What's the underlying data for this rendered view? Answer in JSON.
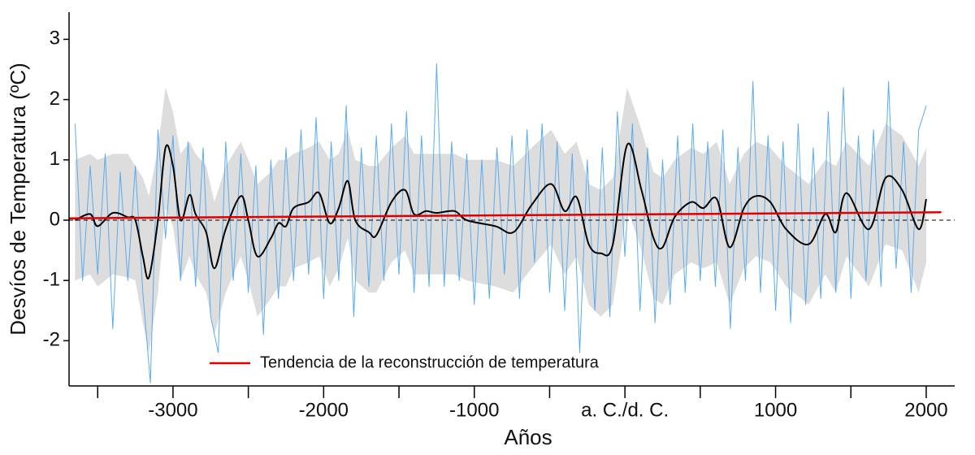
{
  "chart_data": {
    "type": "line",
    "x_label": "Años",
    "y_label": "Desvíos de Temperatura (ºC)",
    "xlim": [
      -3690,
      2189
    ],
    "ylim": [
      -2.75,
      3.45
    ],
    "xticks": [
      -3000,
      -2000,
      -1000,
      {
        "value": 0,
        "label": "a. C./d. C."
      },
      1000,
      2000
    ],
    "xminor_ticks": [
      -3500,
      -2500,
      -1500,
      -500,
      500,
      1500
    ],
    "yticks": [
      -2,
      -1,
      0,
      1,
      2,
      3
    ],
    "zero_line": true,
    "legend": "lower left",
    "band": {
      "color": "#dddddd",
      "x": [
        -3650,
        -3550,
        -3500,
        -3400,
        -3300,
        -3250,
        -3200,
        -3160,
        -3100,
        -3050,
        -3000,
        -2950,
        -2890,
        -2850,
        -2780,
        -2725,
        -2650,
        -2550,
        -2500,
        -2440,
        -2350,
        -2300,
        -2250,
        -2200,
        -2100,
        -2030,
        -1960,
        -1900,
        -1840,
        -1790,
        -1700,
        -1650,
        -1550,
        -1460,
        -1400,
        -1320,
        -1250,
        -1130,
        -1050,
        -860,
        -740,
        -620,
        -490,
        -400,
        -320,
        -240,
        -160,
        -80,
        15,
        110,
        190,
        250,
        330,
        440,
        520,
        610,
        695,
        790,
        870,
        965,
        1070,
        1220,
        1330,
        1400,
        1470,
        1620,
        1730,
        1840,
        1950,
        2000
      ],
      "upper": [
        1.0,
        1.1,
        1.0,
        1.1,
        1.1,
        0.9,
        0.7,
        0.4,
        1.2,
        2.2,
        1.8,
        1.1,
        1.3,
        1.1,
        0.9,
        0.3,
        0.9,
        1.3,
        1.0,
        0.6,
        0.8,
        1.0,
        1.0,
        1.1,
        1.2,
        1.3,
        1.0,
        1.1,
        1.5,
        1.0,
        0.9,
        0.9,
        1.2,
        1.4,
        1.1,
        1.1,
        1.1,
        1.1,
        1.0,
        1.0,
        0.9,
        1.2,
        1.5,
        1.1,
        1.3,
        0.6,
        0.5,
        0.7,
        2.2,
        1.5,
        0.8,
        0.7,
        1.0,
        1.2,
        1.1,
        1.3,
        0.6,
        1.1,
        1.3,
        1.2,
        0.9,
        0.6,
        1.0,
        0.9,
        1.3,
        0.9,
        1.6,
        1.4,
        0.9,
        1.2
      ],
      "lower": [
        -1.0,
        -0.9,
        -1.1,
        -0.9,
        -0.95,
        -1.0,
        -1.7,
        -2.2,
        -1.2,
        0.2,
        -0.1,
        -1.0,
        -0.6,
        -0.9,
        -1.2,
        -1.9,
        -1.2,
        -0.6,
        -1.0,
        -1.6,
        -1.3,
        -1.1,
        -1.1,
        -0.8,
        -0.7,
        -0.6,
        -1.1,
        -0.8,
        -0.3,
        -1.0,
        -1.2,
        -1.2,
        -0.7,
        -0.5,
        -0.9,
        -0.9,
        -0.9,
        -0.9,
        -1.0,
        -1.1,
        -1.2,
        -0.8,
        -0.4,
        -0.9,
        -0.6,
        -1.4,
        -1.6,
        -1.4,
        0.2,
        -0.5,
        -1.3,
        -1.4,
        -0.9,
        -0.7,
        -0.8,
        -0.7,
        -1.4,
        -0.8,
        -0.6,
        -0.7,
        -1.1,
        -1.4,
        -0.9,
        -1.2,
        -0.6,
        -1.1,
        -0.4,
        -0.5,
        -1.2,
        -0.7
      ]
    },
    "series": [
      {
        "color": "#5aabef",
        "x": [
          -3650,
          -3600,
          -3550,
          -3500,
          -3450,
          -3400,
          -3350,
          -3300,
          -3250,
          -3200,
          -3150,
          -3100,
          -3050,
          -3000,
          -2950,
          -2900,
          -2850,
          -2800,
          -2750,
          -2700,
          -2650,
          -2600,
          -2550,
          -2500,
          -2450,
          -2400,
          -2350,
          -2300,
          -2250,
          -2200,
          -2150,
          -2100,
          -2050,
          -2000,
          -1950,
          -1900,
          -1850,
          -1800,
          -1750,
          -1700,
          -1650,
          -1600,
          -1550,
          -1500,
          -1450,
          -1400,
          -1350,
          -1300,
          -1250,
          -1200,
          -1150,
          -1100,
          -1050,
          -1000,
          -950,
          -900,
          -850,
          -800,
          -750,
          -700,
          -650,
          -600,
          -550,
          -500,
          -450,
          -400,
          -350,
          -300,
          -250,
          -200,
          -150,
          -100,
          -50,
          0,
          50,
          100,
          150,
          200,
          250,
          300,
          350,
          400,
          450,
          500,
          550,
          600,
          650,
          700,
          750,
          800,
          850,
          900,
          950,
          1000,
          1050,
          1100,
          1150,
          1200,
          1250,
          1300,
          1350,
          1400,
          1450,
          1500,
          1550,
          1600,
          1650,
          1700,
          1750,
          1800,
          1850,
          1900,
          1950,
          2000
        ],
        "values": [
          1.6,
          -1.0,
          0.9,
          -0.9,
          1.1,
          -1.8,
          0.8,
          -1.0,
          0.9,
          -1.2,
          -2.7,
          1.5,
          -0.3,
          1.4,
          -1.0,
          1.3,
          -1.1,
          1.2,
          -1.6,
          -2.2,
          1.3,
          -1.0,
          1.1,
          -1.2,
          0.9,
          -1.9,
          1.0,
          -1.3,
          1.2,
          -1.0,
          1.5,
          -0.9,
          1.7,
          -1.3,
          1.3,
          -1.0,
          1.9,
          -1.6,
          1.2,
          -1.1,
          1.4,
          -1.0,
          1.6,
          -0.9,
          1.8,
          -1.2,
          1.4,
          -1.1,
          2.6,
          -1.1,
          1.3,
          -1.0,
          1.1,
          -1.4,
          1.0,
          -1.3,
          1.2,
          -0.9,
          1.4,
          -1.3,
          1.5,
          -0.7,
          1.6,
          -1.2,
          1.3,
          -1.5,
          1.1,
          -2.2,
          1.0,
          -1.5,
          1.2,
          -1.6,
          1.8,
          -0.6,
          1.6,
          -1.5,
          1.2,
          -1.7,
          1.0,
          -1.4,
          1.4,
          -1.2,
          1.6,
          -1.0,
          1.3,
          -1.1,
          1.5,
          -1.8,
          1.2,
          -1.0,
          2.3,
          -1.2,
          1.4,
          -1.5,
          1.3,
          -1.7,
          1.6,
          -1.4,
          1.2,
          -1.3,
          1.8,
          -1.2,
          2.2,
          -1.3,
          1.4,
          -1.0,
          1.5,
          -1.1,
          2.3,
          -0.8,
          1.3,
          -1.2,
          1.5,
          1.9
        ]
      },
      {
        "color": "#000000",
        "x": [
          -3650,
          -3550,
          -3500,
          -3400,
          -3300,
          -3250,
          -3200,
          -3160,
          -3100,
          -3050,
          -3000,
          -2950,
          -2890,
          -2850,
          -2780,
          -2725,
          -2650,
          -2550,
          -2500,
          -2440,
          -2350,
          -2300,
          -2250,
          -2200,
          -2100,
          -2030,
          -1960,
          -1900,
          -1840,
          -1790,
          -1700,
          -1650,
          -1550,
          -1460,
          -1400,
          -1320,
          -1250,
          -1130,
          -1050,
          -860,
          -740,
          -620,
          -490,
          -400,
          -320,
          -240,
          -160,
          -80,
          15,
          110,
          190,
          250,
          330,
          440,
          520,
          610,
          695,
          790,
          870,
          965,
          1070,
          1220,
          1330,
          1400,
          1470,
          1620,
          1730,
          1840,
          1950,
          2000
        ],
        "values": [
          0,
          0.1,
          -0.1,
          0.12,
          0.05,
          0,
          -0.6,
          -0.95,
          0,
          1.2,
          0.9,
          0,
          0.42,
          0.1,
          -0.2,
          -0.8,
          -0.15,
          0.4,
          0,
          -0.6,
          -0.3,
          -0.05,
          -0.1,
          0.2,
          0.3,
          0.45,
          -0.05,
          0.2,
          0.65,
          0,
          -0.2,
          -0.25,
          0.3,
          0.5,
          0.1,
          0.15,
          0.12,
          0.15,
          0,
          -0.1,
          -0.2,
          0.25,
          0.6,
          0.15,
          0.38,
          -0.4,
          -0.55,
          -0.4,
          1.25,
          0.5,
          -0.3,
          -0.45,
          0.05,
          0.3,
          0.2,
          0.35,
          -0.45,
          0.2,
          0.4,
          0.3,
          -0.15,
          -0.4,
          0.1,
          -0.2,
          0.45,
          -0.15,
          0.7,
          0.5,
          -0.15,
          0.35
        ]
      },
      {
        "name": "Tendencia de la reconstrucción de temperatura",
        "color": "#e00000",
        "x": [
          -3690,
          2100
        ],
        "values": [
          0.03,
          0.13
        ]
      }
    ]
  }
}
